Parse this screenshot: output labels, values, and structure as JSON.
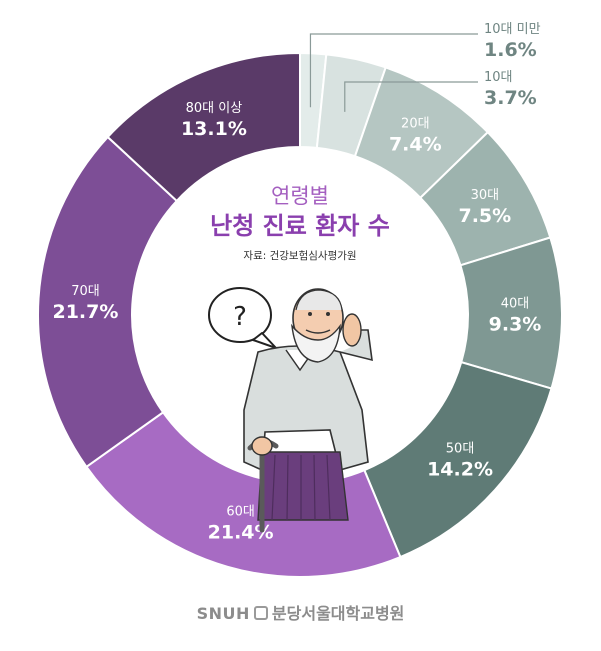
{
  "chart_data": {
    "type": "pie",
    "title": "연령별",
    "subtitle": "난청 진료 환자 수",
    "source": "자료: 건강보험심사평가원",
    "slices": [
      {
        "label": "10대 미만",
        "value": 1.6,
        "display": "1.6%",
        "color": "#e3ecea"
      },
      {
        "label": "10대",
        "value": 3.7,
        "display": "3.7%",
        "color": "#d8e2e0"
      },
      {
        "label": "20대",
        "value": 7.4,
        "display": "7.4%",
        "color": "#b5c6c2"
      },
      {
        "label": "30대",
        "value": 7.5,
        "display": "7.5%",
        "color": "#9db3ae"
      },
      {
        "label": "40대",
        "value": 9.3,
        "display": "9.3%",
        "color": "#7f9893"
      },
      {
        "label": "50대",
        "value": 14.2,
        "display": "14.2%",
        "color": "#5f7b76"
      },
      {
        "label": "60대",
        "value": 21.4,
        "display": "21.4%",
        "color": "#a76bc3"
      },
      {
        "label": "70대",
        "value": 21.7,
        "display": "21.7%",
        "color": "#7d4e96"
      },
      {
        "label": "80대 이상",
        "value": 13.1,
        "display": "13.1%",
        "color": "#5a3a68"
      }
    ]
  },
  "illustration": {
    "speech_bubble": "?"
  },
  "footer": {
    "brand": "SNUH",
    "hospital": "분당서울대학교병원"
  }
}
